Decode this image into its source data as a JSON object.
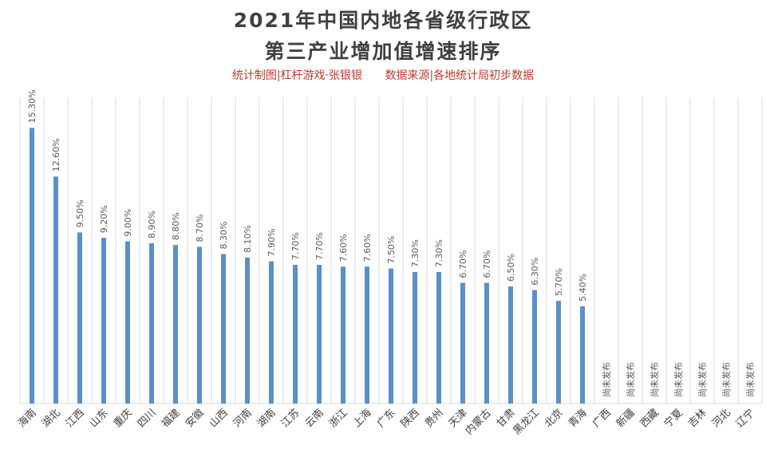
{
  "header": {
    "title_line1": "2021年中国内地各省级行政区",
    "title_line2": "第三产业增加值增速排序",
    "credit": "统计制图|杠杆游戏·张银银",
    "source": "数据来源|各地统计局初步数据"
  },
  "chart_data": {
    "type": "bar",
    "orientation": "vertical",
    "categories": [
      "海南",
      "湖北",
      "江西",
      "山东",
      "重庆",
      "四川",
      "福建",
      "安徽",
      "山西",
      "河南",
      "湖南",
      "江苏",
      "云南",
      "浙江",
      "上海",
      "广东",
      "陕西",
      "贵州",
      "天津",
      "内蒙古",
      "甘肃",
      "黑龙江",
      "北京",
      "青海",
      "广西",
      "新疆",
      "西藏",
      "宁夏",
      "吉林",
      "河北",
      "辽宁"
    ],
    "values": [
      15.3,
      12.6,
      9.5,
      9.2,
      9.0,
      8.9,
      8.8,
      8.7,
      8.3,
      8.1,
      7.9,
      7.7,
      7.7,
      7.6,
      7.6,
      7.5,
      7.3,
      7.3,
      6.7,
      6.7,
      6.5,
      6.3,
      5.7,
      5.4,
      null,
      null,
      null,
      null,
      null,
      null,
      null
    ],
    "data_labels": [
      "15.30%",
      "12.60%",
      "9.50%",
      "9.20%",
      "9.00%",
      "8.90%",
      "8.80%",
      "8.70%",
      "8.30%",
      "8.10%",
      "7.90%",
      "7.70%",
      "7.70%",
      "7.60%",
      "7.60%",
      "7.50%",
      "7.30%",
      "7.30%",
      "6.70%",
      "6.70%",
      "6.50%",
      "6.30%",
      "5.70%",
      "5.40%",
      "尚未发布",
      "尚未发布",
      "尚未发布",
      "尚未发布",
      "尚未发布",
      "尚未发布",
      "尚未发布"
    ],
    "ylim": [
      0,
      17
    ],
    "grid": "vertical",
    "legend": "none",
    "bar_color": "#5b8fc7",
    "label_color": "#595959",
    "grid_color": "#d9d9d9"
  }
}
